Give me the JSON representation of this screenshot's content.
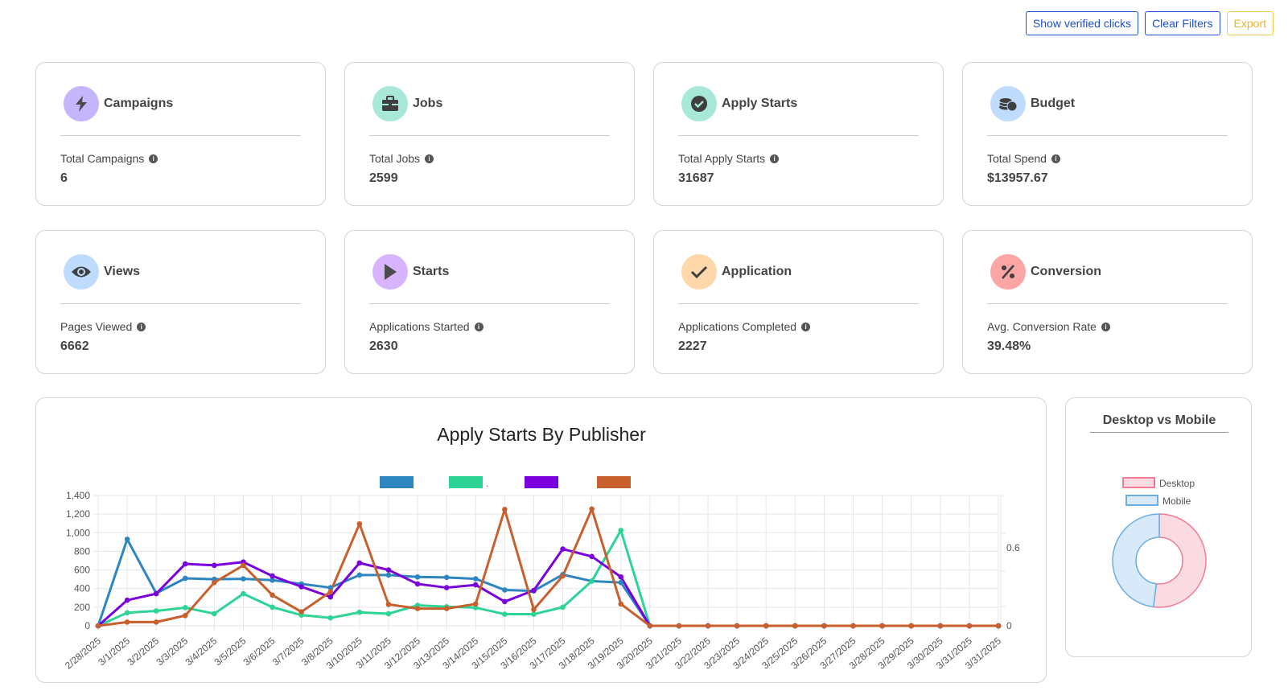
{
  "toolbar": {
    "verified_label": "Show verified clicks",
    "clear_label": "Clear Filters",
    "export_label": "Export"
  },
  "cards": [
    {
      "title": "Campaigns",
      "label": "Total Campaigns",
      "value": "6",
      "icon": "bolt-icon",
      "icon_bg": "#c4b5fd"
    },
    {
      "title": "Jobs",
      "label": "Total Jobs",
      "value": "2599",
      "icon": "briefcase-icon",
      "icon_bg": "#a7e8d8"
    },
    {
      "title": "Apply Starts",
      "label": "Total Apply Starts",
      "value": "31687",
      "icon": "check-circle-icon",
      "icon_bg": "#a7e8d8"
    },
    {
      "title": "Budget",
      "label": "Total Spend",
      "value": "$13957.67",
      "icon": "coins-icon",
      "icon_bg": "#bfdbfe"
    },
    {
      "title": "Views",
      "label": "Pages Viewed",
      "value": "6662",
      "icon": "eye-icon",
      "icon_bg": "#bfdbfe"
    },
    {
      "title": "Starts",
      "label": "Applications Started",
      "value": "2630",
      "icon": "play-icon",
      "icon_bg": "#d8b4fe"
    },
    {
      "title": "Application",
      "label": "Applications Completed",
      "value": "2227",
      "icon": "checkmark-icon",
      "icon_bg": "#fed7aa"
    },
    {
      "title": "Conversion",
      "label": "Avg. Conversion Rate",
      "value": "39.48%",
      "icon": "percent-icon",
      "icon_bg": "#fca5a5"
    }
  ],
  "chart_data": [
    {
      "type": "line",
      "title": "Apply Starts By Publisher",
      "legend_position": "top",
      "grid": true,
      "ylim": [
        0,
        1400
      ],
      "y_ticks": [
        0,
        200,
        400,
        600,
        800,
        1000,
        1200,
        1400
      ],
      "y_tick_labels": [
        "0",
        "200",
        "400",
        "600",
        "800",
        "1,000",
        "1,200",
        "1,400"
      ],
      "y2_tick_labels": [
        "0",
        "0.6"
      ],
      "categories": [
        "2/28/2025",
        "3/1/2025",
        "3/2/2025",
        "3/3/2025",
        "3/4/2025",
        "3/5/2025",
        "3/6/2025",
        "3/7/2025",
        "3/8/2025",
        "3/10/2025",
        "3/11/2025",
        "3/12/2025",
        "3/13/2025",
        "3/14/2025",
        "3/15/2025",
        "3/16/2025",
        "3/17/2025",
        "3/18/2025",
        "3/19/2025",
        "3/20/2025",
        "3/21/2025",
        "3/22/2025",
        "3/23/2025",
        "3/24/2025",
        "3/25/2025",
        "3/26/2025",
        "3/27/2025",
        "3/28/2025",
        "3/29/2025",
        "3/30/2025",
        "3/31/2025",
        "3/31/2025"
      ],
      "series": [
        {
          "legend_text": "",
          "color": "#2e86c1",
          "values": [
            0,
            930,
            350,
            510,
            500,
            505,
            490,
            450,
            410,
            545,
            545,
            525,
            520,
            505,
            385,
            375,
            550,
            480,
            465,
            0,
            0,
            0,
            0,
            0,
            0,
            0,
            0,
            0,
            0,
            0,
            0,
            0
          ]
        },
        {
          "legend_text": ".",
          "color": "#2ed396",
          "values": [
            0,
            140,
            160,
            195,
            130,
            345,
            200,
            115,
            85,
            145,
            130,
            220,
            205,
            195,
            125,
            125,
            200,
            480,
            1025,
            0,
            0,
            0,
            0,
            0,
            0,
            0,
            0,
            0,
            0,
            0,
            0,
            0
          ]
        },
        {
          "legend_text": "",
          "color": "#7a00dc",
          "values": [
            0,
            275,
            345,
            665,
            650,
            685,
            535,
            420,
            310,
            675,
            600,
            450,
            410,
            440,
            260,
            380,
            825,
            745,
            525,
            0,
            0,
            0,
            0,
            0,
            0,
            0,
            0,
            0,
            0,
            0,
            0,
            0
          ]
        },
        {
          "legend_text": "",
          "color": "#c8602e",
          "values": [
            0,
            40,
            40,
            110,
            465,
            650,
            330,
            150,
            365,
            1095,
            230,
            185,
            185,
            235,
            1250,
            175,
            535,
            1255,
            235,
            0,
            0,
            0,
            0,
            0,
            0,
            0,
            0,
            0,
            0,
            0,
            0,
            0
          ]
        }
      ]
    },
    {
      "type": "pie",
      "title": "Desktop vs Mobile",
      "legend_position": "top",
      "labels": [
        "Desktop",
        "Mobile"
      ],
      "values": [
        52,
        48
      ],
      "colors": [
        "#fbdbe2",
        "#d8e9f9"
      ],
      "border_colors": [
        "#f27b93",
        "#6aaee6"
      ]
    }
  ]
}
